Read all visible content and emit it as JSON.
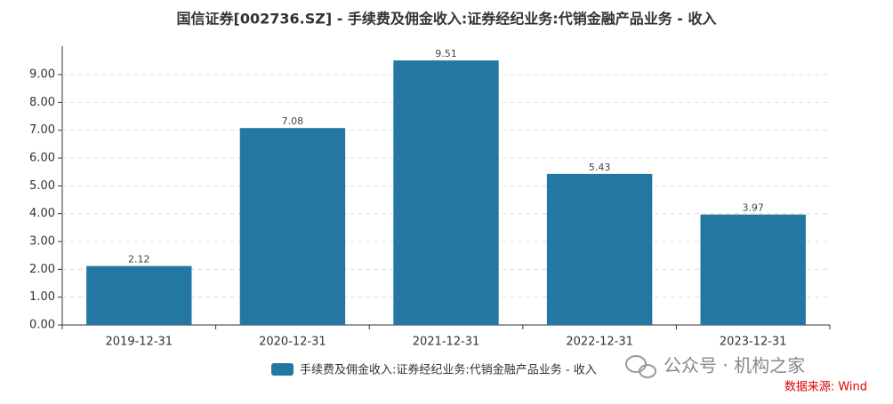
{
  "chart_data": {
    "type": "bar",
    "title": "国信证券[002736.SZ] - 手续费及佣金收入:证券经纪业务:代销金融产品业务 - 收入",
    "categories": [
      "2019-12-31",
      "2020-12-31",
      "2021-12-31",
      "2022-12-31",
      "2023-12-31"
    ],
    "series": [
      {
        "name": "手续费及佣金收入:证券经纪业务:代销金融产品业务 - 收入",
        "color": "#2577a3",
        "values": [
          2.12,
          7.08,
          9.51,
          5.43,
          3.97
        ]
      }
    ],
    "ylim": [
      0,
      10
    ],
    "yticks": [
      {
        "value": 0,
        "label": "0.00"
      },
      {
        "value": 1,
        "label": "1.00"
      },
      {
        "value": 2,
        "label": "2.00"
      },
      {
        "value": 3,
        "label": "3.00"
      },
      {
        "value": 4,
        "label": "4.00"
      },
      {
        "value": 5,
        "label": "5.00"
      },
      {
        "value": 6,
        "label": "6.00"
      },
      {
        "value": 7,
        "label": "7.00"
      },
      {
        "value": 8,
        "label": "8.00"
      },
      {
        "value": 9,
        "label": "9.00"
      }
    ],
    "grid": true,
    "legend": "bottom",
    "watermark": "公众号 · 机构之家",
    "source": "数据来源: Wind"
  }
}
